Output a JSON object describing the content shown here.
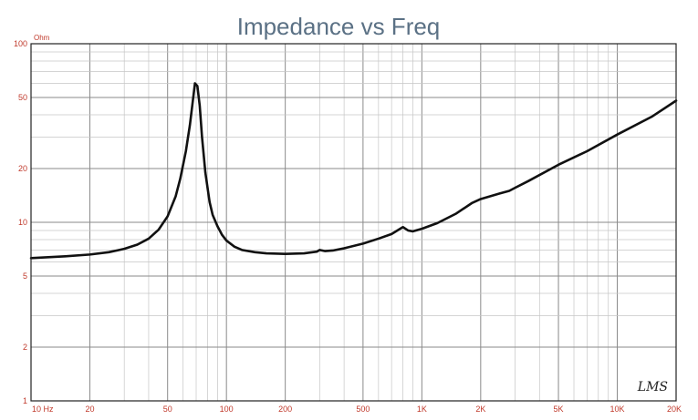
{
  "chart_data": {
    "type": "line",
    "title": "Impedance vs Freq",
    "ylabel": "Ohm",
    "xlabel": "",
    "x_scale": "log",
    "y_scale": "log",
    "xlim": [
      10,
      20000
    ],
    "ylim": [
      1,
      100
    ],
    "grid": true,
    "x_tick_labels": [
      {
        "value": 10,
        "label": "10 Hz"
      },
      {
        "value": 20,
        "label": "20"
      },
      {
        "value": 50,
        "label": "50"
      },
      {
        "value": 100,
        "label": "100"
      },
      {
        "value": 200,
        "label": "200"
      },
      {
        "value": 500,
        "label": "500"
      },
      {
        "value": 1000,
        "label": "1K"
      },
      {
        "value": 2000,
        "label": "2K"
      },
      {
        "value": 5000,
        "label": "5K"
      },
      {
        "value": 10000,
        "label": "10K"
      },
      {
        "value": 20000,
        "label": "20K"
      }
    ],
    "y_tick_labels": [
      {
        "value": 1,
        "label": "1"
      },
      {
        "value": 2,
        "label": "2"
      },
      {
        "value": 5,
        "label": "5"
      },
      {
        "value": 10,
        "label": "10"
      },
      {
        "value": 20,
        "label": "20"
      },
      {
        "value": 50,
        "label": "50"
      },
      {
        "value": 100,
        "label": "100"
      }
    ],
    "series": [
      {
        "color": "#111111",
        "x": [
          10,
          15,
          20,
          25,
          30,
          35,
          40,
          45,
          50,
          55,
          58,
          62,
          65,
          67,
          69,
          71,
          73,
          75,
          78,
          82,
          85,
          90,
          95,
          100,
          110,
          120,
          140,
          160,
          200,
          250,
          290,
          300,
          320,
          350,
          400,
          500,
          600,
          700,
          800,
          850,
          900,
          1000,
          1200,
          1500,
          1800,
          2000,
          2500,
          2800,
          3000,
          3500,
          5000,
          7000,
          10000,
          15000,
          20000
        ],
        "y": [
          6.3,
          6.45,
          6.6,
          6.8,
          7.1,
          7.5,
          8.1,
          9.1,
          10.8,
          14,
          17.5,
          25,
          35,
          46,
          60,
          58,
          45,
          30,
          19,
          13,
          11,
          9.5,
          8.5,
          7.9,
          7.3,
          7.0,
          6.8,
          6.7,
          6.65,
          6.7,
          6.85,
          7.0,
          6.9,
          6.95,
          7.15,
          7.6,
          8.1,
          8.6,
          9.4,
          9.0,
          8.9,
          9.2,
          9.9,
          11.2,
          12.8,
          13.5,
          14.5,
          15.0,
          15.6,
          17.0,
          21,
          25,
          31,
          39,
          48
        ]
      }
    ]
  },
  "logo_text": "LMS",
  "colors": {
    "title": "#5b7185",
    "tick_labels": "#c0392b",
    "grid_major": "#8a8a8a",
    "grid_minor": "#c6c6c6",
    "curve": "#111111"
  }
}
